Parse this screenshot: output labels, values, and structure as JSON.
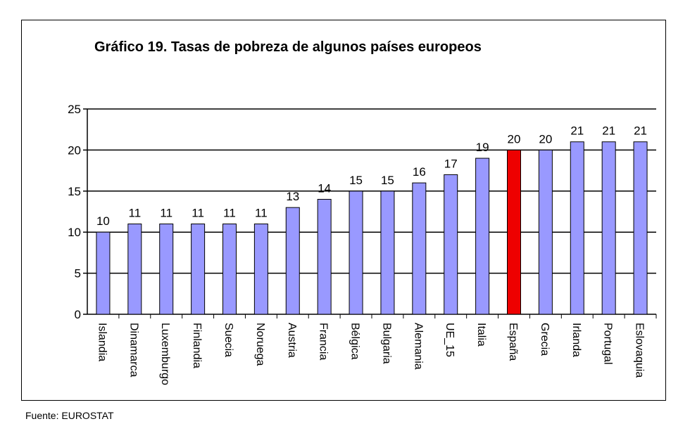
{
  "source_note": "Fuente: EUROSTAT",
  "colors": {
    "bar": "#9999ff",
    "highlight": "#ee0000",
    "gridline": "#000000"
  },
  "chart_data": {
    "type": "bar",
    "title": "Gráfico 19. Tasas de pobreza de algunos países europeos",
    "xlabel": "",
    "ylabel": "",
    "ylim": [
      0,
      25
    ],
    "yticks": [
      0,
      5,
      10,
      15,
      20,
      25
    ],
    "grid": true,
    "legend": "none",
    "highlight_category": "España",
    "categories": [
      "Islandia",
      "Dinamarca",
      "Luxemburgo",
      "Finlandia",
      "Suecia",
      "Noruega",
      "Austria",
      "Francia",
      "Bélgica",
      "Bulgaria",
      "Alemania",
      "UE_15",
      "Italia",
      "España",
      "Grecia",
      "Irlanda",
      "Portugal",
      "Eslovaquia"
    ],
    "values": [
      10,
      11,
      11,
      11,
      11,
      11,
      13,
      14,
      15,
      15,
      16,
      17,
      19,
      20,
      20,
      21,
      21,
      21
    ]
  }
}
